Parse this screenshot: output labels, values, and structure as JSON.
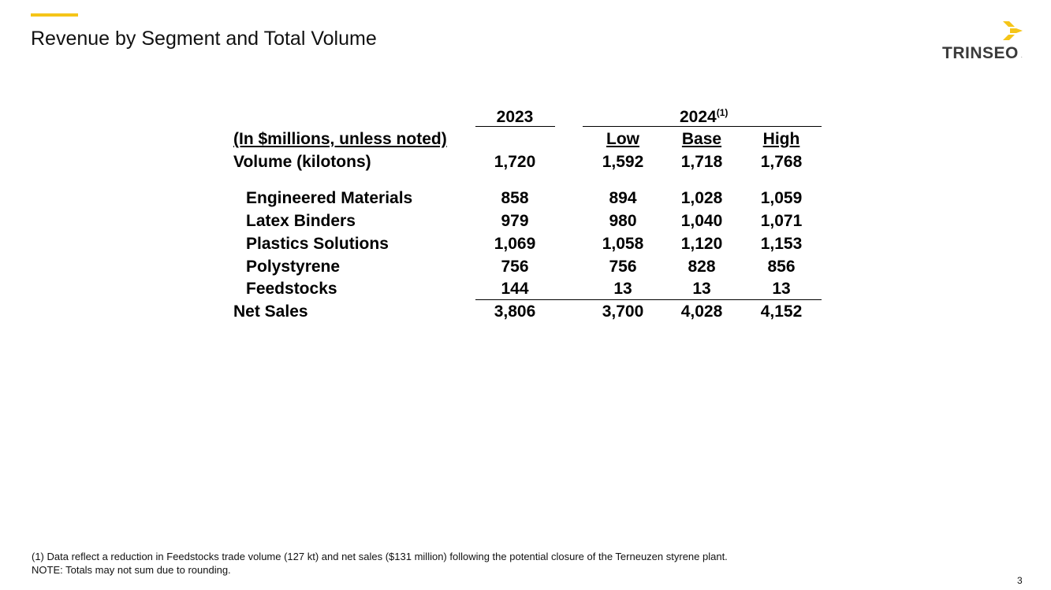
{
  "slide": {
    "title": "Revenue by Segment and Total Volume",
    "page_number": "3",
    "accent_color": "#f5c518"
  },
  "logo": {
    "text": "TRINSEO",
    "mark_icon": "trinseo-chevron-logo-icon",
    "mark_color": "#f5c518"
  },
  "table": {
    "col_2023": "2023",
    "col_2024": "2024",
    "col_2024_footnote": "(1)",
    "units_label": "(In $millions, unless noted)",
    "sub_low": "Low",
    "sub_base": "Base",
    "sub_high": "High",
    "rows": [
      {
        "label": "Volume (kilotons)",
        "v2023": "1,720",
        "low": "1,592",
        "base": "1,718",
        "high": "1,768"
      },
      {
        "label": "Engineered Materials",
        "v2023": "858",
        "low": "894",
        "base": "1,028",
        "high": "1,059"
      },
      {
        "label": "Latex Binders",
        "v2023": "979",
        "low": "980",
        "base": "1,040",
        "high": "1,071"
      },
      {
        "label": "Plastics Solutions",
        "v2023": "1,069",
        "low": "1,058",
        "base": "1,120",
        "high": "1,153"
      },
      {
        "label": "Polystyrene",
        "v2023": "756",
        "low": "756",
        "base": "828",
        "high": "856"
      },
      {
        "label": "Feedstocks",
        "v2023": "144",
        "low": "13",
        "base": "13",
        "high": "13"
      },
      {
        "label": "Net Sales",
        "v2023": "3,806",
        "low": "3,700",
        "base": "4,028",
        "high": "4,152"
      }
    ]
  },
  "footnote": {
    "line1": "(1)  Data reflect a reduction in Feedstocks trade volume (127 kt) and net sales ($131 million) following the potential closure of the Terneuzen styrene plant.",
    "line2": "NOTE: Totals may not sum due to rounding."
  }
}
